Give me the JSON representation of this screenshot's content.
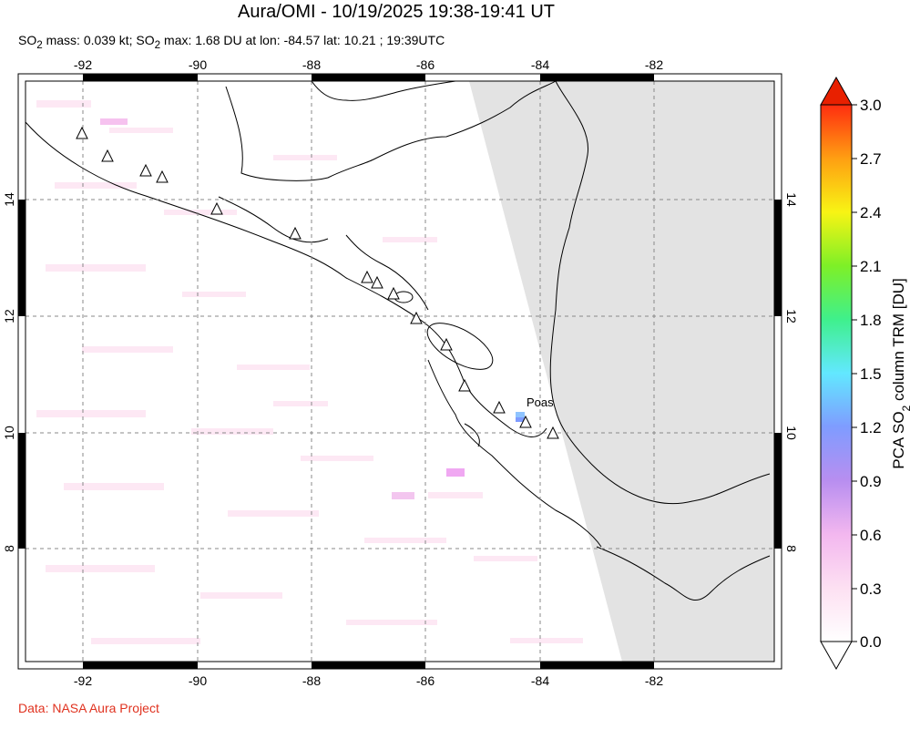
{
  "header": {
    "title": "Aura/OMI - 10/19/2025 19:38-19:41 UT",
    "subtitle_html": "SO<sub>2</sub> mass: 0.039 kt; SO<sub>2</sub> max: 1.68 DU at lon: -84.57 lat: 10.21 ; 19:39UTC"
  },
  "footer": {
    "credit": "Data: NASA Aura Project"
  },
  "map": {
    "lon_range": [
      -93,
      -79.8
    ],
    "lat_range": [
      6,
      16
    ],
    "x_ticks": [
      "-92",
      "-90",
      "-88",
      "-86",
      "-84",
      "-82"
    ],
    "y_ticks": [
      "14",
      "12",
      "10",
      "8"
    ],
    "outside_swath_color": "#e3e3e3",
    "volcano_label": "Poas"
  },
  "colorbar": {
    "label_html": "PCA SO<tspan baseline-shift='sub' font-size='12'>2</tspan> column TRM [DU]",
    "ticks": [
      "3.0",
      "2.7",
      "2.4",
      "2.1",
      "1.8",
      "1.5",
      "1.2",
      "0.9",
      "0.6",
      "0.3",
      "0.0"
    ],
    "colors": [
      "#ffffff",
      "#fde0f2",
      "#f3b7ef",
      "#b88ef0",
      "#7f9cff",
      "#62e8ff",
      "#3ff08c",
      "#7ef027",
      "#f8f414",
      "#ff9f12",
      "#ff2d10",
      "#d90000"
    ]
  }
}
